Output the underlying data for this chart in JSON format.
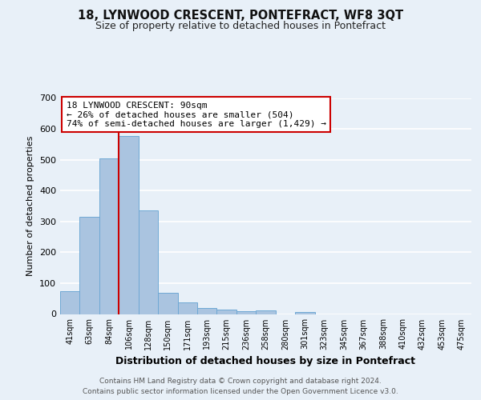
{
  "title": "18, LYNWOOD CRESCENT, PONTEFRACT, WF8 3QT",
  "subtitle": "Size of property relative to detached houses in Pontefract",
  "xlabel": "Distribution of detached houses by size in Pontefract",
  "ylabel": "Number of detached properties",
  "bar_labels": [
    "41sqm",
    "63sqm",
    "84sqm",
    "106sqm",
    "128sqm",
    "150sqm",
    "171sqm",
    "193sqm",
    "215sqm",
    "236sqm",
    "258sqm",
    "280sqm",
    "301sqm",
    "323sqm",
    "345sqm",
    "367sqm",
    "388sqm",
    "410sqm",
    "432sqm",
    "453sqm",
    "475sqm"
  ],
  "bar_values": [
    75,
    315,
    505,
    578,
    335,
    68,
    38,
    20,
    15,
    10,
    12,
    0,
    7,
    0,
    0,
    0,
    0,
    0,
    0,
    0,
    0
  ],
  "bar_color": "#aac4e0",
  "bar_edge_color": "#6fa8d4",
  "vline_x": 2.5,
  "vline_color": "#cc0000",
  "annotation_title": "18 LYNWOOD CRESCENT: 90sqm",
  "annotation_line1": "← 26% of detached houses are smaller (504)",
  "annotation_line2": "74% of semi-detached houses are larger (1,429) →",
  "annotation_box_color": "#ffffff",
  "annotation_box_edge": "#cc0000",
  "ylim": [
    0,
    700
  ],
  "yticks": [
    0,
    100,
    200,
    300,
    400,
    500,
    600,
    700
  ],
  "bg_color": "#e8f0f8",
  "grid_color": "#ffffff",
  "footer1": "Contains HM Land Registry data © Crown copyright and database right 2024.",
  "footer2": "Contains public sector information licensed under the Open Government Licence v3.0."
}
